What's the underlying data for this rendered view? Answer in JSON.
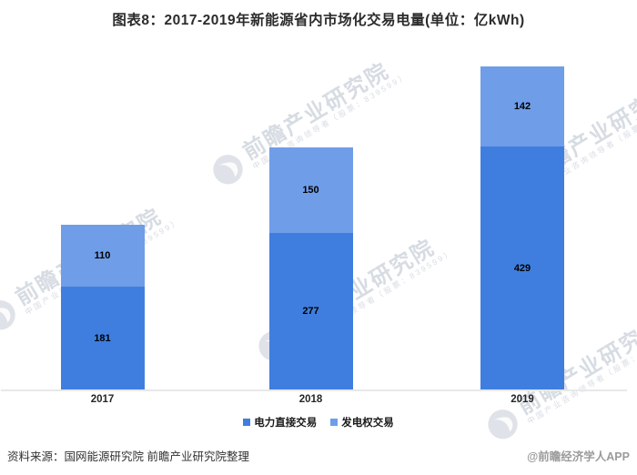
{
  "title": "图表8：2017-2019年新能源省内市场化交易电量(单位：亿kWh)",
  "chart_data": {
    "type": "bar",
    "stacked": true,
    "title": "图表8：2017-2019年新能源省内市场化交易电量(单位：亿kWh)",
    "unit": "亿kWh",
    "categories": [
      "2017",
      "2018",
      "2019"
    ],
    "series": [
      {
        "name": "电力直接交易",
        "color": "#3f7edf",
        "values": [
          181,
          277,
          429
        ]
      },
      {
        "name": "发电权交易",
        "color": "#6f9de8",
        "values": [
          110,
          150,
          142
        ]
      }
    ],
    "totals": [
      291,
      427,
      571
    ],
    "value_labels_shown": true,
    "y_axis_visible": false,
    "grid": false,
    "legend_position": "bottom",
    "axis_line_color": "#e8e8e8"
  },
  "watermark": {
    "brand": "前瞻产业研究院",
    "tagline": "中国产业咨询领导者（股票：839599）"
  },
  "footer": {
    "source": "资料来源：国网能源研究院 前瞻产业研究院整理",
    "credit": "@前瞻经济学人APP"
  }
}
